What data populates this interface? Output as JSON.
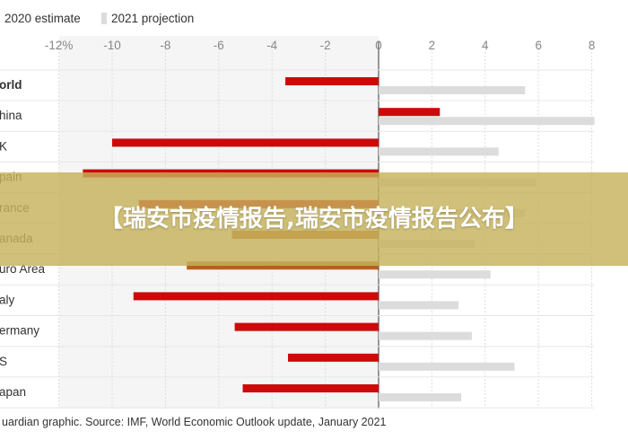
{
  "chart_data": {
    "type": "bar",
    "orientation": "horizontal",
    "categories": [
      "World",
      "China",
      "UK",
      "Spain",
      "France",
      "Canada",
      "Euro Area",
      "Italy",
      "Germany",
      "US",
      "Japan"
    ],
    "category_labels_visible": [
      "orld",
      "hina",
      "K",
      "pain",
      "rance",
      "anada",
      "uro Area",
      "aly",
      "ermany",
      "S",
      "apan"
    ],
    "series": [
      {
        "name": "2020 estimate",
        "color": "#cc0a0a",
        "values": [
          -3.5,
          2.3,
          -10.0,
          -11.1,
          -9.0,
          -5.5,
          -7.2,
          -9.2,
          -5.4,
          -3.4,
          -5.1
        ],
        "colors": [
          "#cc0a0a",
          "#cc0a0a",
          "#cc0a0a",
          "#cc0a0a",
          "#cc0a0a",
          "#b8601e",
          "#b8601e",
          "#cc0a0a",
          "#cc0a0a",
          "#cc0a0a",
          "#cc0a0a"
        ]
      },
      {
        "name": "2021 projection",
        "color": "#dcdcdc",
        "values": [
          5.5,
          8.1,
          4.5,
          5.9,
          5.5,
          3.6,
          4.2,
          3.0,
          3.5,
          5.1,
          3.1
        ]
      }
    ],
    "xlim": [
      -12,
      8
    ],
    "xticks": [
      -12,
      -10,
      -8,
      -6,
      -4,
      -2,
      0,
      2,
      4,
      6,
      8
    ],
    "xtick_labels": [
      "-12%",
      "-10",
      "-8",
      "-6",
      "-4",
      "-2",
      "0",
      "2",
      "4",
      "6",
      "8"
    ],
    "legend": {
      "placement": "top-left",
      "entries": [
        {
          "label": "2020 estimate",
          "color": "#cc0a0a"
        },
        {
          "label": "2021 projection",
          "color": "#dcdcdc"
        }
      ]
    },
    "grid": true,
    "source": "uardian graphic. Source: IMF, World Economic Outlook update, January 2021"
  },
  "overlay": {
    "banner_text": "【瑞安市疫情报告,瑞安市疫情报告公布】"
  }
}
